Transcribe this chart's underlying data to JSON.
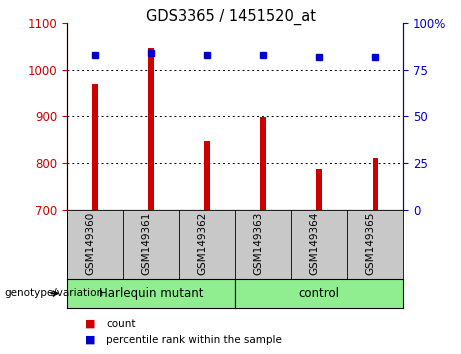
{
  "title": "GDS3365 / 1451520_at",
  "samples": [
    "GSM149360",
    "GSM149361",
    "GSM149362",
    "GSM149363",
    "GSM149364",
    "GSM149365"
  ],
  "counts": [
    970,
    1047,
    848,
    898,
    787,
    812
  ],
  "percentile_ranks": [
    83,
    84,
    83,
    83,
    82,
    82
  ],
  "ylim_left": [
    700,
    1100
  ],
  "ylim_right": [
    0,
    100
  ],
  "yticks_left": [
    700,
    800,
    900,
    1000,
    1100
  ],
  "yticks_right": [
    0,
    25,
    50,
    75,
    100
  ],
  "bar_color": "#cc0000",
  "dot_color": "#0000cc",
  "grid_color": "#000000",
  "group1_label": "Harlequin mutant",
  "group2_label": "control",
  "group1_count": 3,
  "group2_count": 3,
  "xlabel_area": "genotype/variation",
  "legend_count_label": "count",
  "legend_pct_label": "percentile rank within the sample",
  "figsize": [
    4.61,
    3.54
  ],
  "dpi": 100,
  "bg_color": "#ffffff",
  "plot_bg_color": "#ffffff",
  "tick_label_area_bg": "#c8c8c8",
  "group_area_bg": "#90ee90"
}
